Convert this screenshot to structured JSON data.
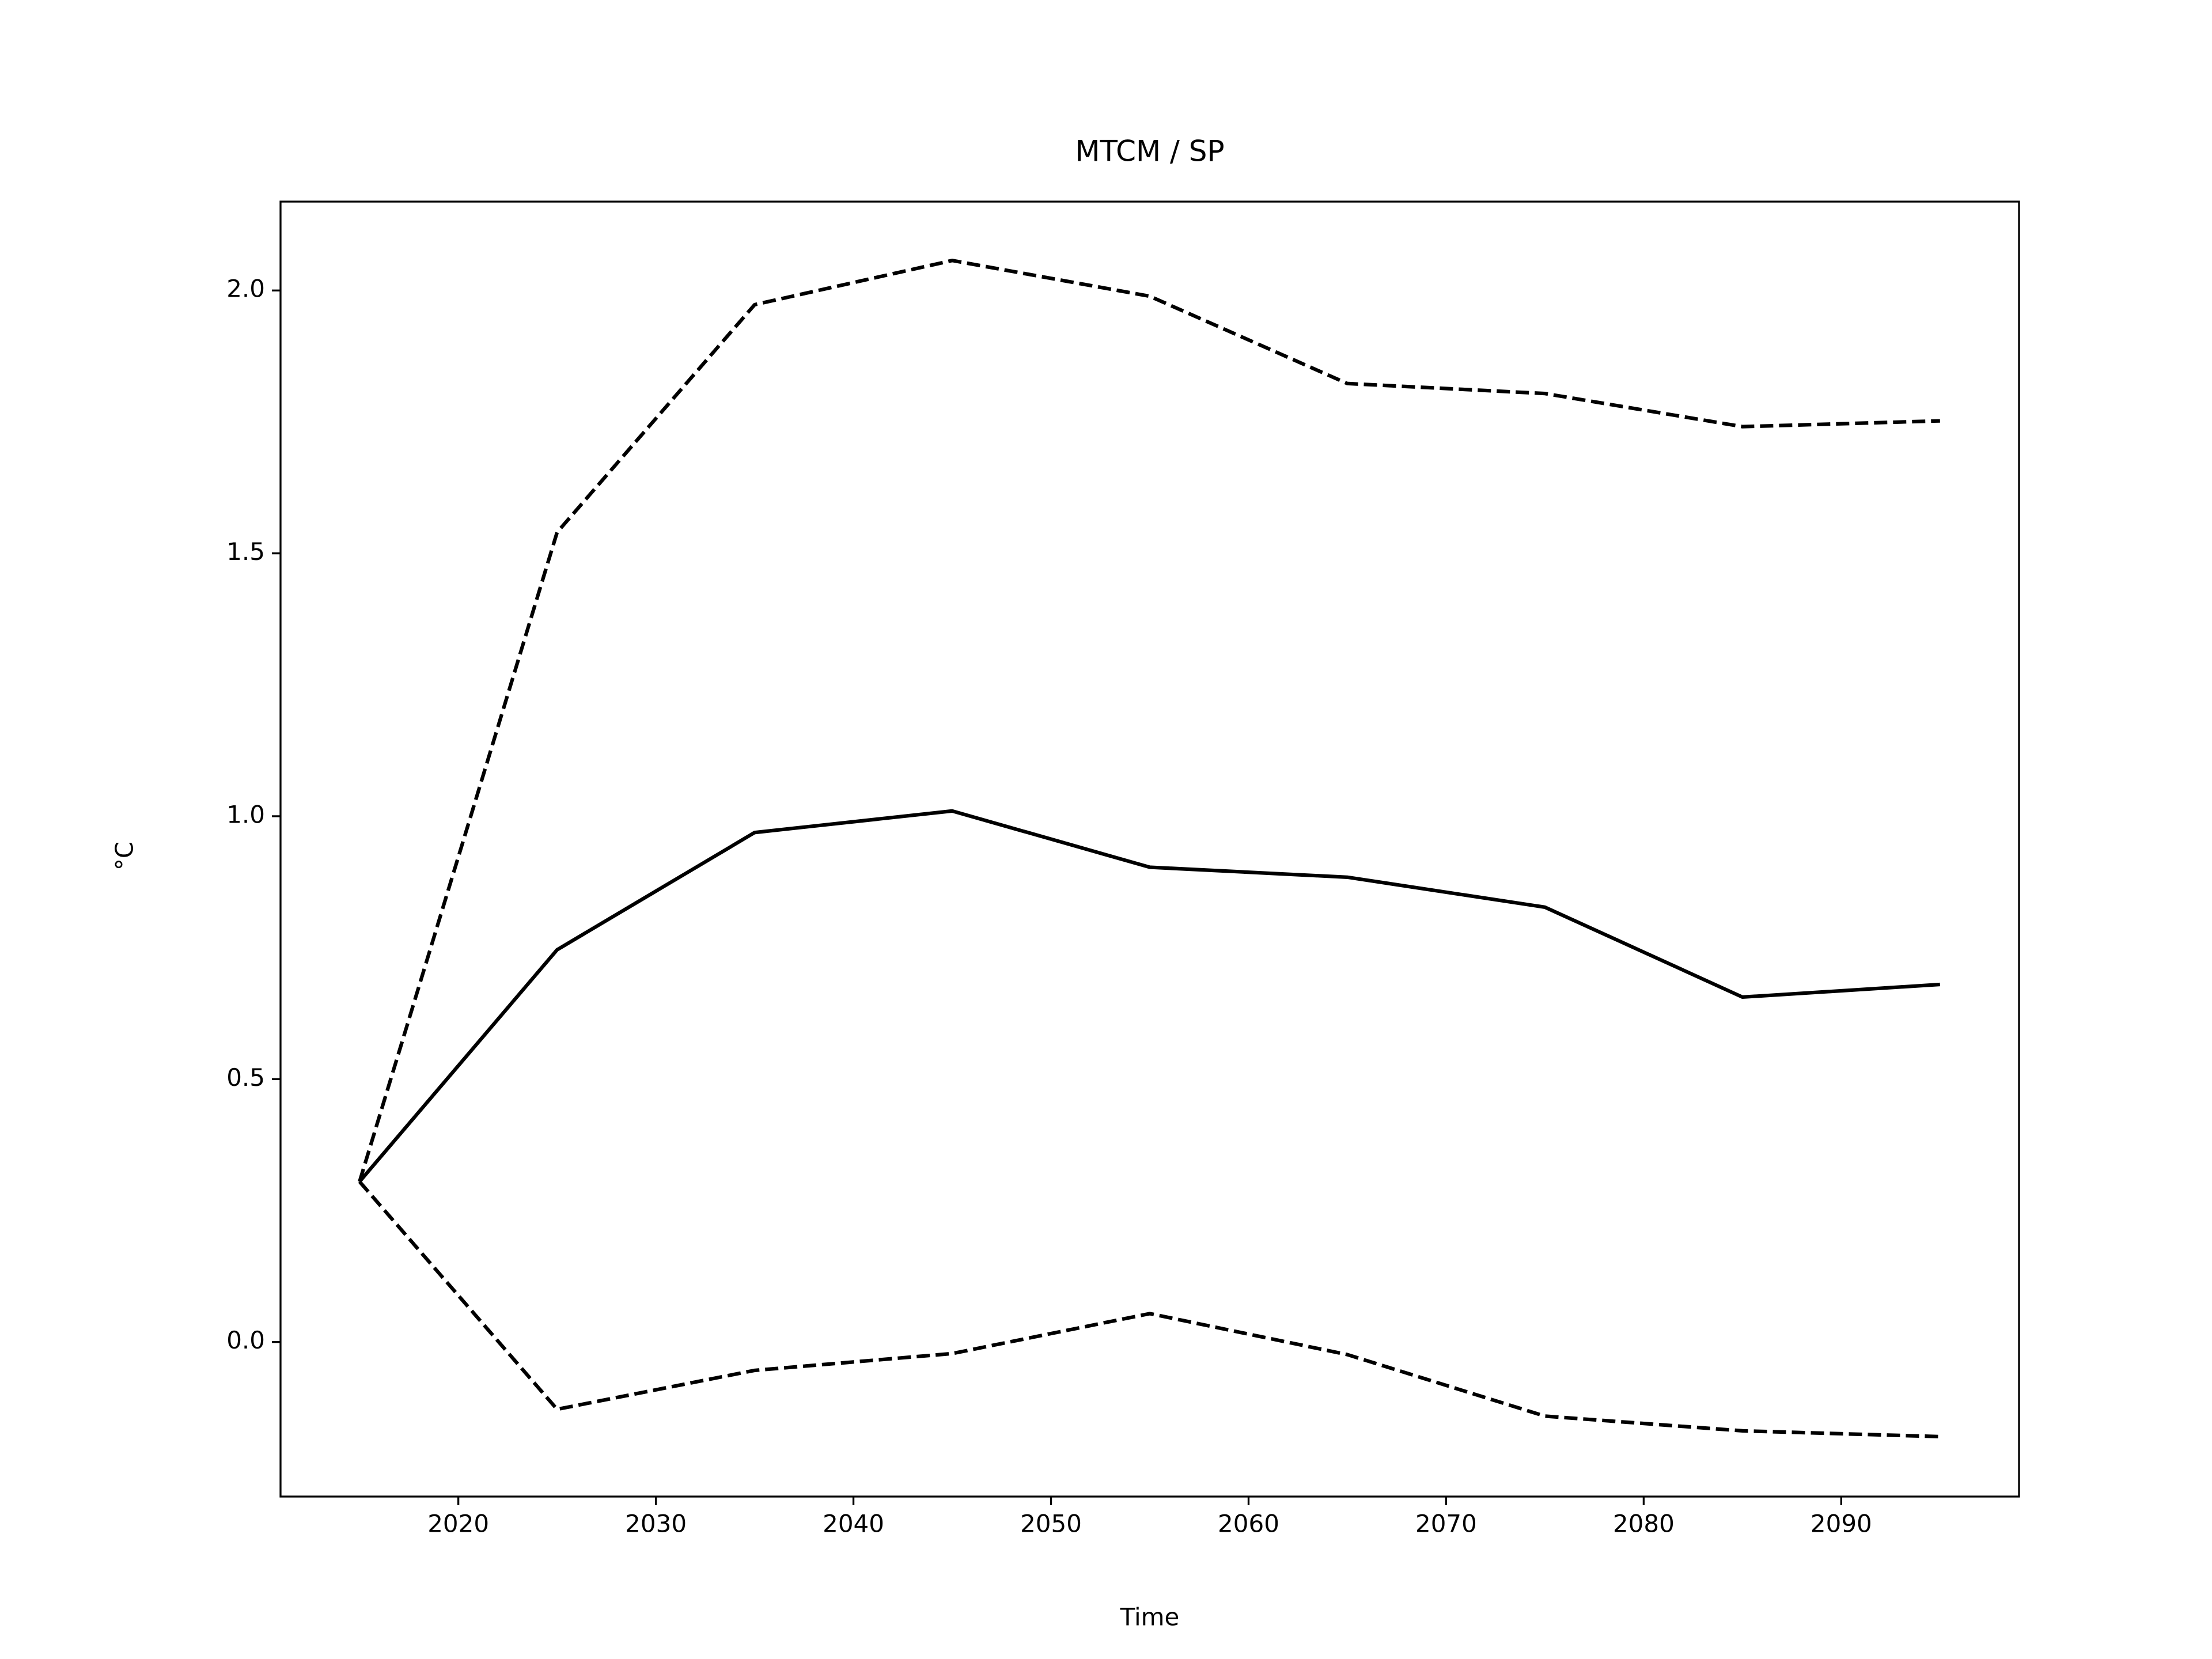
{
  "chart_data": {
    "type": "line",
    "title": "MTCM / SP",
    "x_label": "Time",
    "y_label": "°C",
    "x": [
      2015,
      2025,
      2035,
      2045,
      2055,
      2065,
      2075,
      2085,
      2095
    ],
    "series": [
      {
        "color": "#000000",
        "linestyle": "solid",
        "values": [
          0.305,
          0.746,
          0.969,
          1.01,
          0.903,
          0.884,
          0.827,
          0.656,
          0.68
        ]
      },
      {
        "color": "#000000",
        "linestyle": "dashed",
        "values": [
          0.305,
          1.54,
          1.973,
          2.057,
          1.989,
          1.823,
          1.804,
          1.741,
          1.752
        ]
      },
      {
        "color": "#000000",
        "linestyle": "dashed",
        "values": [
          0.305,
          -0.128,
          -0.054,
          -0.022,
          0.054,
          -0.024,
          -0.141,
          -0.169,
          -0.18
        ]
      }
    ],
    "xlim": [
      2011,
      2099
    ],
    "ylim": [
      -0.294,
      2.169
    ],
    "xticks": [
      2020,
      2030,
      2040,
      2050,
      2060,
      2070,
      2080,
      2090
    ],
    "yticks": [
      {
        "value": 0,
        "label": "0.0"
      },
      0.5,
      {
        "value": 1,
        "label": "1.0"
      },
      1.5,
      {
        "value": 2,
        "label": "2.0"
      }
    ],
    "grid": false
  }
}
